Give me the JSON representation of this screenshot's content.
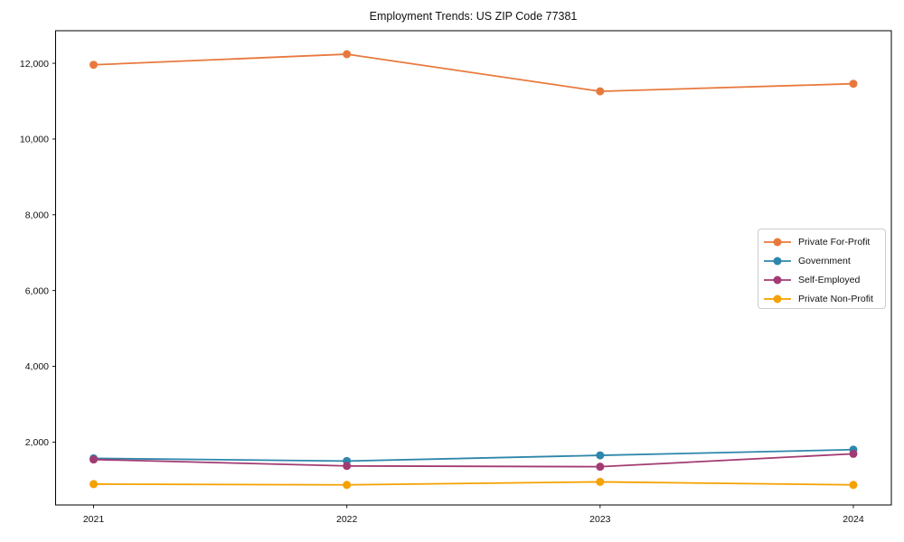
{
  "chart_data": {
    "type": "line",
    "title": "Employment Trends: US ZIP Code 77381",
    "x": [
      2021,
      2022,
      2023,
      2024
    ],
    "categories": [
      "2021",
      "2022",
      "2023",
      "2024"
    ],
    "series": [
      {
        "name": "Private For-Profit",
        "color": "#E8793D",
        "values": [
          11960,
          12240,
          11260,
          11460
        ]
      },
      {
        "name": "Government",
        "color": "#2E86AB",
        "values": [
          1570,
          1500,
          1650,
          1800
        ]
      },
      {
        "name": "Self-Employed",
        "color": "#A23B72",
        "values": [
          1540,
          1370,
          1350,
          1690
        ]
      },
      {
        "name": "Private Non-Profit",
        "color": "#F5A101",
        "values": [
          890,
          870,
          950,
          870
        ]
      }
    ],
    "xlim": [
      2020.85,
      2024.15
    ],
    "ylim": [
      340,
      12860
    ],
    "yticks": [
      2000,
      4000,
      6000,
      8000,
      10000,
      12000
    ],
    "ytick_labels": [
      "2,000",
      "4,000",
      "6,000",
      "8,000",
      "10,000",
      "12,000"
    ],
    "xlabel": "",
    "ylabel": "",
    "grid": false,
    "legend_position": "center-right",
    "marker": "circle"
  }
}
